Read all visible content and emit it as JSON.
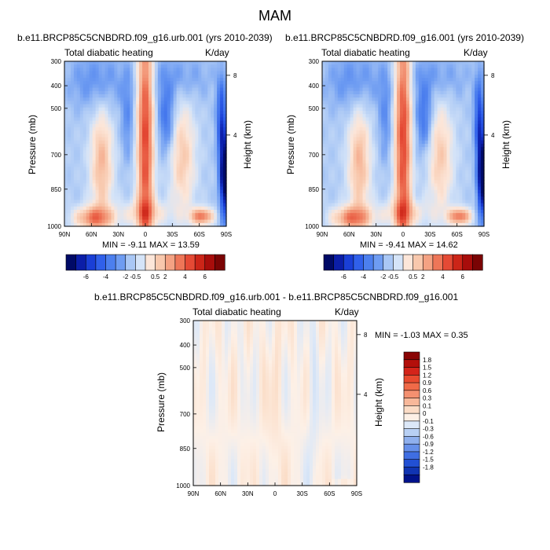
{
  "figure_title": "MAM",
  "chart_data": [
    {
      "type": "heatmap",
      "title": "b.e11.BRCP85C5CNBDRD.f09_g16.urb.001 (yrs 2010-2039)",
      "left_string": "Total diabatic heating",
      "right_string": "K/day",
      "ylabel": "Pressure (mb)",
      "right_ylabel": "Height (km)",
      "y_ticks": [
        "300",
        "400",
        "500",
        "700",
        "850",
        "1000"
      ],
      "x_ticks": [
        "90N",
        "60N",
        "30N",
        "0",
        "30S",
        "60S",
        "90S"
      ],
      "height_ticks": [
        "8",
        "4"
      ],
      "stats": "MIN = -9.11   MAX =  13.59",
      "min": -9.11,
      "max": 13.59,
      "levels": [
        "-6",
        "-4",
        "-2",
        "-0.5",
        "0.5",
        "2",
        "4",
        "6"
      ],
      "palette": [
        "#000a66",
        "#0b1ea8",
        "#1a3fd6",
        "#3060ea",
        "#4c7fee",
        "#6e9cf2",
        "#a9c7f5",
        "#d5e4f8",
        "#fce6d9",
        "#f8c8ad",
        "#f4a283",
        "#ee7658",
        "#e54a35",
        "#cc2518",
        "#a80d0b",
        "#7a0404"
      ]
    },
    {
      "type": "heatmap",
      "title": "b.e11.BRCP85C5CNBDRD.f09_g16.001 (yrs 2010-2039)",
      "left_string": "Total diabatic heating",
      "right_string": "K/day",
      "ylabel": "Pressure (mb)",
      "right_ylabel": "Height (km)",
      "y_ticks": [
        "300",
        "400",
        "500",
        "700",
        "850",
        "1000"
      ],
      "x_ticks": [
        "90N",
        "60N",
        "30N",
        "0",
        "30S",
        "60S",
        "90S"
      ],
      "height_ticks": [
        "8",
        "4"
      ],
      "stats": "MIN = -9.41   MAX =  14.62",
      "min": -9.41,
      "max": 14.62,
      "levels": [
        "-6",
        "-4",
        "-2",
        "-0.5",
        "0.5",
        "2",
        "4",
        "6"
      ],
      "palette": [
        "#000a66",
        "#0b1ea8",
        "#1a3fd6",
        "#3060ea",
        "#4c7fee",
        "#6e9cf2",
        "#a9c7f5",
        "#d5e4f8",
        "#fce6d9",
        "#f8c8ad",
        "#f4a283",
        "#ee7658",
        "#e54a35",
        "#cc2518",
        "#a80d0b",
        "#7a0404"
      ]
    },
    {
      "type": "heatmap",
      "title": "b.e11.BRCP85C5CNBDRD.f09_g16.urb.001 - b.e11.BRCP85C5CNBDRD.f09_g16.001",
      "left_string": "Total diabatic heating",
      "right_string": "K/day",
      "ylabel": "Pressure (mb)",
      "right_ylabel": "Height (km)",
      "y_ticks": [
        "300",
        "400",
        "500",
        "700",
        "850",
        "1000"
      ],
      "x_ticks": [
        "90N",
        "60N",
        "30N",
        "0",
        "30S",
        "60S",
        "90S"
      ],
      "height_ticks": [
        "8",
        "4"
      ],
      "stats": "MIN =  -1.03   MAX =   0.35",
      "min": -1.03,
      "max": 0.35,
      "levels": [
        "1.8",
        "1.5",
        "1.2",
        "0.9",
        "0.6",
        "0.3",
        "0.1",
        "0",
        "-0.1",
        "-0.3",
        "-0.6",
        "-0.9",
        "-1.2",
        "-1.5",
        "-1.8"
      ],
      "palette": [
        "#8a0404",
        "#b30f0b",
        "#d4241a",
        "#e84a2f",
        "#f06a48",
        "#f49070",
        "#f8b89a",
        "#fbdcc6",
        "#fdf0e6",
        "#dce8f8",
        "#b8d0f4",
        "#8fb0ee",
        "#6690ea",
        "#3f6ee3",
        "#2250d4",
        "#1034b2",
        "#00128a"
      ]
    }
  ]
}
